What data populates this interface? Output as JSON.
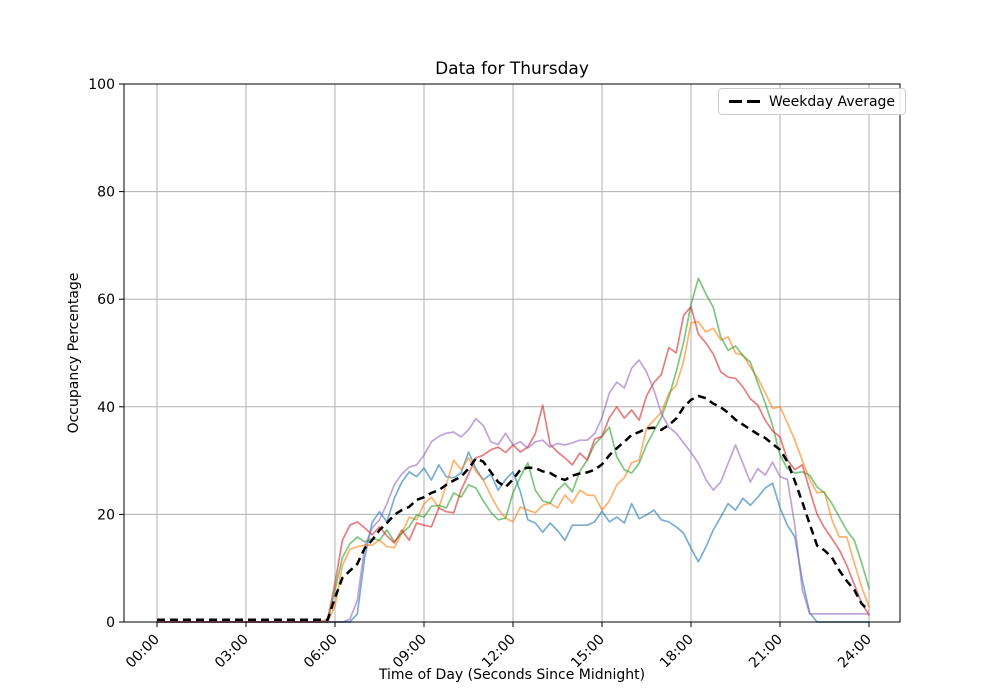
{
  "chart_data": {
    "type": "line",
    "title": "Data for Thursday",
    "xlabel": "Time of Day (Seconds Since Midnight)",
    "ylabel": "Occupancy Percentage",
    "ylim": [
      0,
      100
    ],
    "x_range_hours": [
      0,
      24
    ],
    "grid": true,
    "grid_color": "#b0b0b0",
    "interval_hours": 0.25,
    "y_ticks": [
      0,
      20,
      40,
      60,
      80,
      100
    ],
    "x_ticks": [
      {
        "hour": 0,
        "label": "00:00"
      },
      {
        "hour": 3,
        "label": "03:00"
      },
      {
        "hour": 6,
        "label": "06:00"
      },
      {
        "hour": 9,
        "label": "09:00"
      },
      {
        "hour": 12,
        "label": "12:00"
      },
      {
        "hour": 15,
        "label": "15:00"
      },
      {
        "hour": 18,
        "label": "18:00"
      },
      {
        "hour": 21,
        "label": "21:00"
      },
      {
        "hour": 24,
        "label": "24:00"
      }
    ],
    "legend": {
      "label": "Weekday Average",
      "position": "upper right"
    },
    "series": [
      {
        "name": "blue",
        "color": "#1f77b4",
        "opacity": 0.6,
        "values": [
          0,
          0,
          0,
          0,
          0,
          0,
          0,
          0,
          0,
          0,
          0,
          0,
          0,
          0,
          0,
          0,
          0,
          0,
          0,
          0,
          0,
          0,
          0,
          0,
          0,
          0,
          0,
          1.5,
          12,
          18.5,
          20.5,
          18.6,
          23,
          26,
          27.9,
          27,
          28.6,
          26.4,
          29.2,
          27,
          26.8,
          27.7,
          31.6,
          28.5,
          26.4,
          27.5,
          24.5,
          26.5,
          27.9,
          24.2,
          19,
          18.4,
          16.7,
          18.4,
          17,
          15.2,
          18,
          18,
          18,
          18.6,
          20.6,
          18.6,
          19.5,
          18.4,
          22,
          19.2,
          19.9,
          20.8,
          19,
          18.6,
          17.7,
          16.5,
          13.7,
          11.2,
          13.9,
          17.1,
          19.5,
          22,
          20.8,
          23,
          21.7,
          23.2,
          24.9,
          25.8,
          21.2,
          18,
          15.8,
          7.8,
          1.7,
          0,
          0,
          0,
          0,
          0,
          0,
          0,
          0
        ]
      },
      {
        "name": "orange",
        "color": "#ff7f0e",
        "opacity": 0.6,
        "values": [
          0,
          0,
          0,
          0,
          0,
          0,
          0,
          0,
          0,
          0,
          0,
          0,
          0,
          0,
          0,
          0,
          0,
          0,
          0,
          0,
          0,
          0,
          0,
          0,
          3,
          10.5,
          13.5,
          14,
          14.3,
          14.3,
          15.2,
          14,
          13.8,
          16.5,
          19.5,
          19,
          22,
          23.2,
          21.2,
          25.5,
          30.1,
          28.3,
          30.5,
          28,
          26.4,
          23.5,
          21,
          19.3,
          18.6,
          21.4,
          20.8,
          20.3,
          21.7,
          22.1,
          21.2,
          23.6,
          22.1,
          24.5,
          23.6,
          23.5,
          20.8,
          22.5,
          25.5,
          26.8,
          29.6,
          30.1,
          36,
          37.5,
          39,
          42.5,
          44,
          48.5,
          55.6,
          55.8,
          53.9,
          54.6,
          52.4,
          53,
          50,
          49.6,
          47.4,
          45.3,
          42.6,
          39.7,
          40,
          37,
          33.8,
          30,
          26.5,
          24,
          24.2,
          19,
          15.8,
          15.8,
          11,
          6.5,
          2.8
        ]
      },
      {
        "name": "green",
        "color": "#2ca02c",
        "opacity": 0.6,
        "values": [
          0,
          0,
          0,
          0,
          0,
          0,
          0,
          0,
          0,
          0,
          0,
          0,
          0,
          0,
          0,
          0,
          0,
          0,
          0,
          0,
          0,
          0,
          0,
          0,
          5.9,
          12,
          14.5,
          15.8,
          14.9,
          15.5,
          15.2,
          17.1,
          14.9,
          16.5,
          17.7,
          19.9,
          19.5,
          21.5,
          21.7,
          21.2,
          24,
          23.2,
          25.5,
          24.9,
          22.5,
          20.4,
          19,
          19.3,
          24,
          27,
          29.6,
          24.5,
          22.5,
          22.1,
          24.5,
          25.8,
          24.2,
          28,
          30.1,
          33,
          34.5,
          36.2,
          30.7,
          28.3,
          27.7,
          29.5,
          32.9,
          35.5,
          38,
          41.8,
          46.5,
          52,
          59,
          63.9,
          61,
          58.5,
          53,
          50.5,
          51.3,
          49.5,
          48.3,
          44.4,
          40.7,
          36.5,
          31,
          28.5,
          27.7,
          27.9,
          27.3,
          25.1,
          24,
          22,
          19.5,
          17,
          15.2,
          11,
          6.3
        ]
      },
      {
        "name": "red",
        "color": "#d62728",
        "opacity": 0.6,
        "values": [
          0,
          0,
          0,
          0,
          0,
          0,
          0,
          0,
          0,
          0,
          0,
          0,
          0,
          0,
          0,
          0,
          0,
          0,
          0,
          0,
          0,
          0,
          0,
          0.5,
          7.2,
          15.2,
          18,
          18.6,
          17.5,
          16.2,
          17.7,
          16,
          14.7,
          17.1,
          15.2,
          18.4,
          18,
          17.7,
          21.2,
          20.5,
          20.3,
          24.5,
          27.5,
          30.5,
          31,
          32,
          32.5,
          31.5,
          32.9,
          31.6,
          32.5,
          35,
          40.3,
          33,
          31.6,
          30.5,
          29.2,
          31.4,
          30.1,
          34,
          34.5,
          38,
          40,
          37.9,
          39.4,
          37.5,
          42,
          44.5,
          46,
          51,
          50,
          57,
          58.6,
          53.5,
          51.9,
          49.8,
          46.5,
          45.5,
          45.3,
          43.7,
          41.5,
          40.3,
          37.5,
          35.5,
          34.4,
          30.1,
          28.3,
          29.2,
          24.5,
          20,
          17.5,
          15.5,
          13.4,
          10.5,
          7,
          3.5,
          1.3
        ]
      },
      {
        "name": "purple",
        "color": "#9467bd",
        "opacity": 0.6,
        "values": [
          0,
          0,
          0,
          0,
          0,
          0,
          0,
          0,
          0,
          0,
          0,
          0,
          0,
          0,
          0,
          0,
          0,
          0,
          0,
          0,
          0,
          0,
          0,
          0,
          0,
          0,
          0.5,
          4,
          14,
          17.5,
          19,
          22,
          25.5,
          27.5,
          28.8,
          29.2,
          31,
          33.5,
          34.5,
          35.1,
          35.3,
          34.4,
          35.7,
          37.8,
          36.5,
          33.5,
          33,
          35.1,
          32.9,
          33.5,
          32.3,
          33.5,
          33.8,
          32.5,
          33.2,
          32.9,
          33.3,
          33.8,
          33.8,
          35,
          38,
          42.6,
          44.6,
          43.5,
          47.2,
          48.7,
          46.5,
          43.1,
          38.8,
          36.2,
          35.1,
          33.3,
          31.5,
          29.5,
          26.5,
          24.5,
          26,
          29.5,
          32.9,
          29.5,
          26,
          28.5,
          27.3,
          29.7,
          27,
          26.5,
          18,
          6,
          1.5,
          1.5,
          1.5,
          1.5,
          1.5,
          1.5,
          1.5,
          1.5,
          1.5
        ]
      }
    ],
    "average": {
      "name": "Weekday Average",
      "color": "#000000",
      "dash": true,
      "values": [
        0.4,
        0.4,
        0.4,
        0.4,
        0.4,
        0.4,
        0.4,
        0.4,
        0.4,
        0.4,
        0.4,
        0.4,
        0.4,
        0.4,
        0.4,
        0.4,
        0.4,
        0.4,
        0.4,
        0.4,
        0.4,
        0.4,
        0.4,
        0.4,
        4.5,
        8.2,
        9.5,
        10.8,
        13.7,
        15.2,
        17.1,
        18.4,
        19.9,
        20.8,
        21.4,
        22.7,
        23.2,
        24,
        24.5,
        25.5,
        26.3,
        27,
        28.5,
        30.4,
        29.8,
        27.9,
        26,
        25.1,
        26.5,
        28.3,
        28.7,
        28.6,
        28,
        27.7,
        26.9,
        26.4,
        27.2,
        27.6,
        27.8,
        28.3,
        29.3,
        31,
        32.3,
        33.5,
        34.8,
        35.3,
        36,
        36.1,
        35.7,
        36.6,
        37.8,
        39.9,
        41.3,
        42,
        41.6,
        40.6,
        39.9,
        38.9,
        37.6,
        36.7,
        35.8,
        34.9,
        34.2,
        33.1,
        32,
        29.8,
        26.2,
        22.3,
        18.2,
        14.2,
        13.3,
        12,
        9.6,
        7.6,
        6,
        3.4,
        2.1
      ]
    }
  }
}
